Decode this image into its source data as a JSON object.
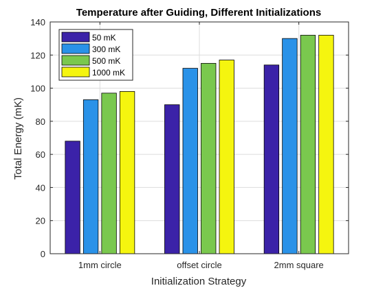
{
  "chart_data": {
    "type": "bar",
    "title": "Temperature after Guiding, Different Initializations",
    "xlabel": "Initialization Strategy",
    "ylabel": "Total Energy (mK)",
    "categories": [
      "1mm circle",
      "offset circle",
      "2mm square"
    ],
    "ylim": [
      0,
      140
    ],
    "yticks": [
      0,
      20,
      40,
      60,
      80,
      100,
      120,
      140
    ],
    "grid": true,
    "legend_position": "top-left",
    "series": [
      {
        "name": "50 mK",
        "color": "#3b22a8",
        "values": [
          68,
          90,
          114
        ]
      },
      {
        "name": "300 mK",
        "color": "#2a92e8",
        "values": [
          93,
          112,
          130
        ]
      },
      {
        "name": "500 mK",
        "color": "#7ac84e",
        "values": [
          97,
          115,
          132
        ]
      },
      {
        "name": "1000 mK",
        "color": "#f5f50f",
        "values": [
          98,
          117,
          132
        ]
      }
    ]
  }
}
